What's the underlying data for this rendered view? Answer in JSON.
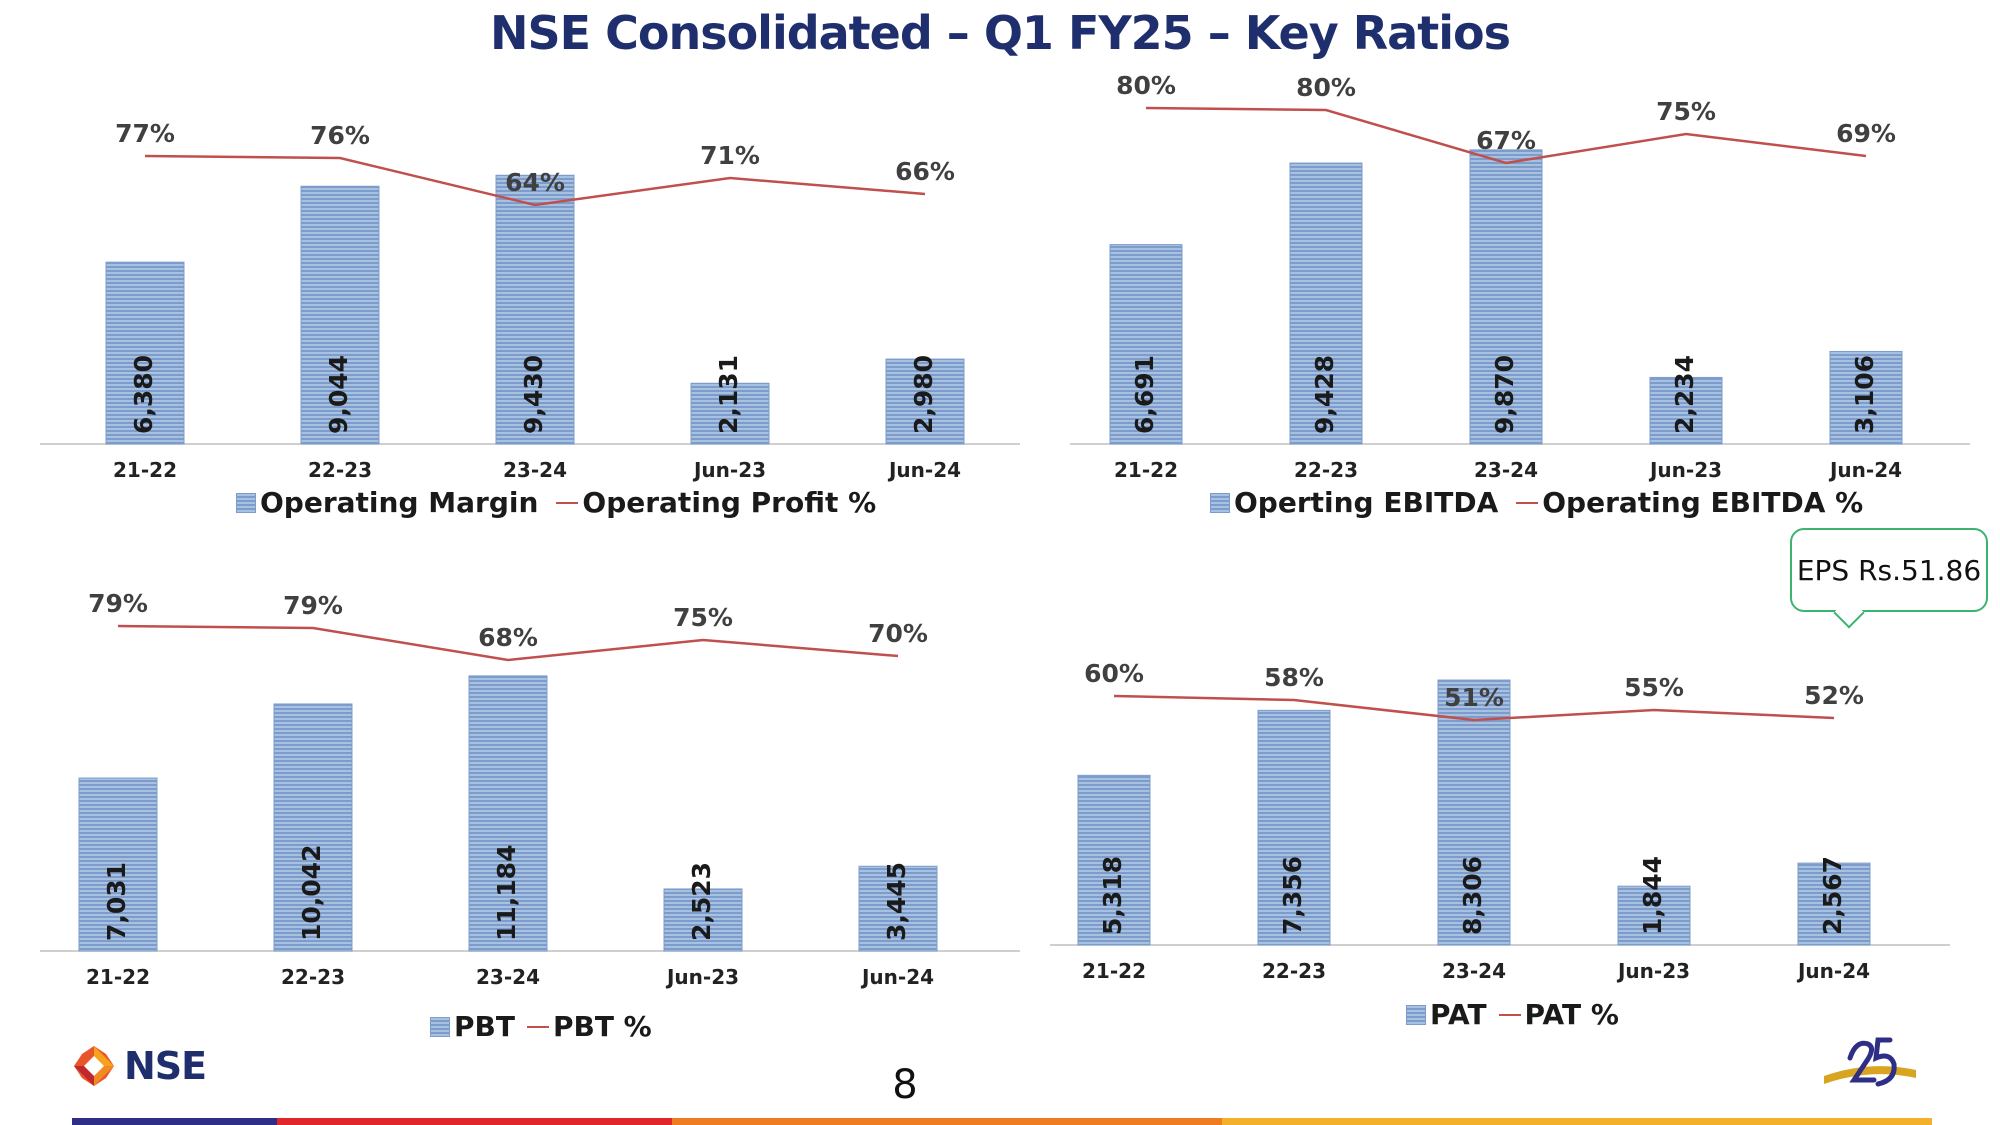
{
  "title": "NSE  Consolidated – Q1 FY25 – Key Ratios",
  "colors": {
    "bar": "#7c9ccb",
    "bar_light": "#a9c1e0",
    "line": "#c0504d",
    "title": "#1f2f6e"
  },
  "chart_data": [
    {
      "type": "bar",
      "categories": [
        "21-22",
        "22-23",
        "23-24",
        "Jun-23",
        "Jun-24"
      ],
      "series": [
        {
          "name": "Operating Margin",
          "type": "bar",
          "values": [
            6380,
            9044,
            9430,
            2131,
            2980
          ],
          "labels": [
            "6,380",
            "9,044",
            "9,430",
            "2,131",
            "2,980"
          ]
        },
        {
          "name": "Operating Profit %",
          "type": "line",
          "values": [
            77,
            76,
            64,
            71,
            66
          ],
          "labels": [
            "77%",
            "76%",
            "64%",
            "71%",
            "66%"
          ]
        }
      ],
      "legend": "bottom"
    },
    {
      "type": "bar",
      "categories": [
        "21-22",
        "22-23",
        "23-24",
        "Jun-23",
        "Jun-24"
      ],
      "series": [
        {
          "name": "Operting EBITDA",
          "type": "bar",
          "values": [
            6691,
            9428,
            9870,
            2234,
            3106
          ],
          "labels": [
            "6,691",
            "9,428",
            "9,870",
            "2,234",
            "3,106"
          ]
        },
        {
          "name": "Operating EBITDA %",
          "type": "line",
          "values": [
            80,
            80,
            67,
            75,
            69
          ],
          "labels": [
            "80%",
            "80%",
            "67%",
            "75%",
            "69%"
          ]
        }
      ],
      "legend": "bottom"
    },
    {
      "type": "bar",
      "categories": [
        "21-22",
        "22-23",
        "23-24",
        "Jun-23",
        "Jun-24"
      ],
      "series": [
        {
          "name": "PBT",
          "type": "bar",
          "values": [
            7031,
            10042,
            11184,
            2523,
            3445
          ],
          "labels": [
            "7,031",
            "10,042",
            "11,184",
            "2,523",
            "3,445"
          ]
        },
        {
          "name": "PBT %",
          "type": "line",
          "values": [
            79,
            79,
            68,
            75,
            70
          ],
          "labels": [
            "79%",
            "79%",
            "68%",
            "75%",
            "70%"
          ]
        }
      ],
      "legend": "bottom"
    },
    {
      "type": "bar",
      "categories": [
        "21-22",
        "22-23",
        "23-24",
        "Jun-23",
        "Jun-24"
      ],
      "series": [
        {
          "name": "PAT",
          "type": "bar",
          "values": [
            5318,
            7356,
            8306,
            1844,
            2567
          ],
          "labels": [
            "5,318",
            "7,356",
            "8,306",
            "1,844",
            "2,567"
          ]
        },
        {
          "name": "PAT %",
          "type": "line",
          "values": [
            60,
            58,
            51,
            55,
            52
          ],
          "labels": [
            "60%",
            "58%",
            "51%",
            "55%",
            "52%"
          ]
        }
      ],
      "legend": "bottom"
    }
  ],
  "callout": "EPS Rs.51.86",
  "footer": {
    "logo_text": "NSE",
    "page_number": "8",
    "anniversary_logo": "25-years-emblem"
  }
}
